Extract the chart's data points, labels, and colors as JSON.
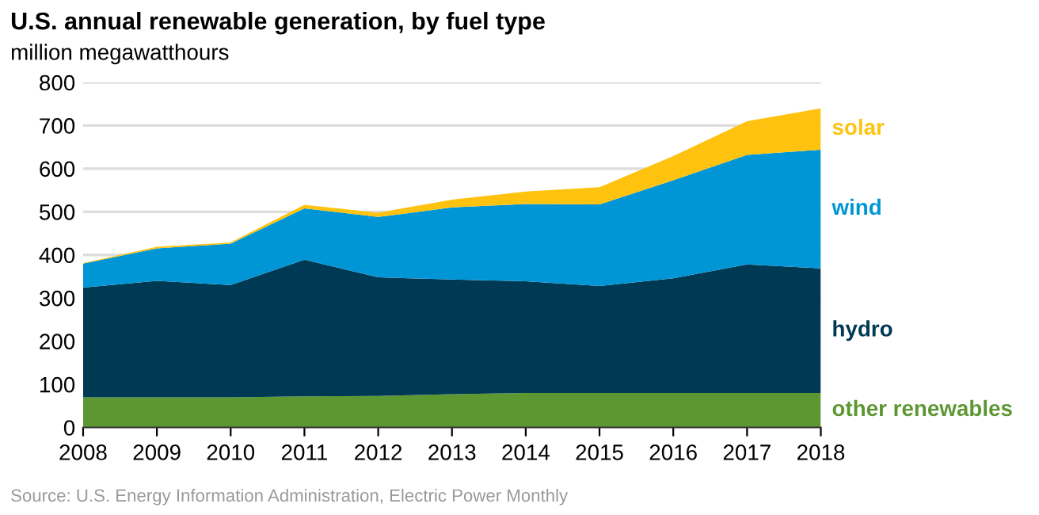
{
  "chart_data": {
    "type": "area",
    "stacked": true,
    "title": "U.S. annual renewable generation, by fuel type",
    "subtitle": "million megawatthours",
    "x": [
      2008,
      2009,
      2010,
      2011,
      2012,
      2013,
      2014,
      2015,
      2016,
      2017,
      2018
    ],
    "series": [
      {
        "name": "other renewables",
        "color": "#5d9732",
        "values": [
          70,
          70,
          70,
          72,
          73,
          77,
          80,
          80,
          80,
          80,
          80
        ]
      },
      {
        "name": "hydro",
        "color": "#003953",
        "values": [
          254,
          270,
          260,
          317,
          275,
          266,
          259,
          248,
          266,
          298,
          289
        ]
      },
      {
        "name": "wind",
        "color": "#0096d6",
        "values": [
          56,
          75,
          96,
          119,
          140,
          167,
          179,
          189,
          227,
          254,
          275
        ]
      },
      {
        "name": "solar",
        "color": "#ffc20e",
        "values": [
          1,
          4,
          3,
          8,
          10,
          18,
          29,
          40,
          56,
          78,
          96
        ]
      }
    ],
    "xlim": [
      2008,
      2018
    ],
    "xticks": [
      2008,
      2009,
      2010,
      2011,
      2012,
      2013,
      2014,
      2015,
      2016,
      2017,
      2018
    ],
    "ylim": [
      0,
      800
    ],
    "yticks": [
      0,
      100,
      200,
      300,
      400,
      500,
      600,
      700,
      800
    ],
    "grid": "y",
    "legend": false,
    "annotations": [
      "Source: U.S. Energy Information Administration, Electric Power Monthly"
    ]
  }
}
